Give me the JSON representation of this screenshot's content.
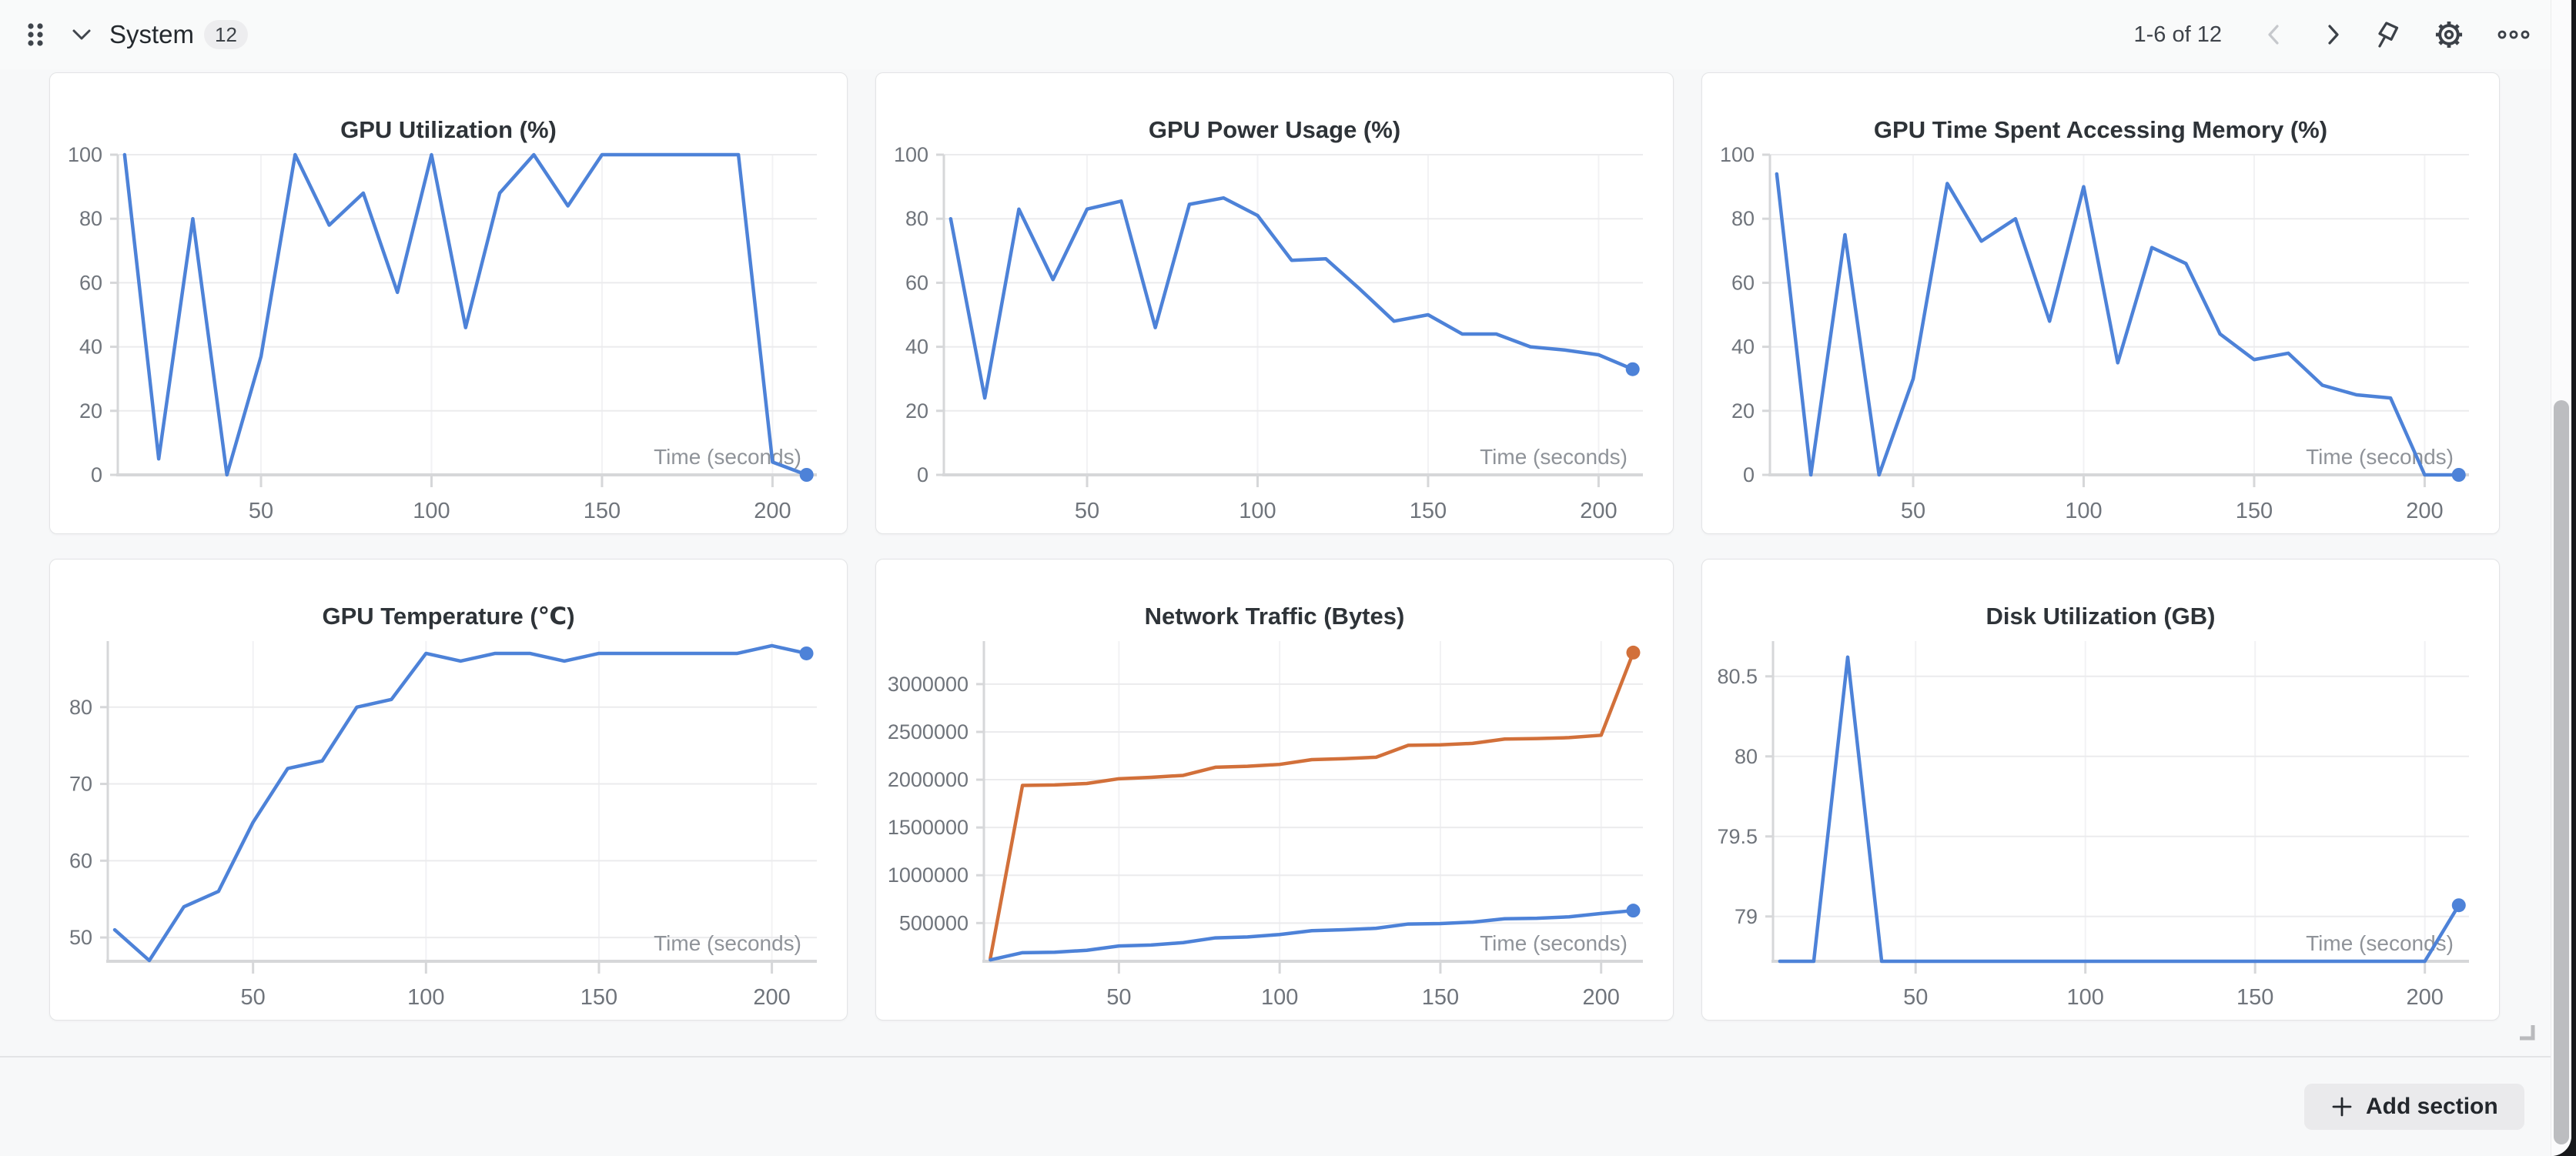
{
  "header": {
    "title": "System",
    "badge_count": "12",
    "pagination": "1-6 of 12",
    "icons": {
      "drag_handle": "six-dot-grip",
      "collapse": "chevron-down",
      "prev": "chevron-left",
      "next": "chevron-right",
      "pin": "push-pin",
      "settings": "gear",
      "more": "ellipsis"
    }
  },
  "footer": {
    "add_section_label": "Add section"
  },
  "colors": {
    "blue": "#4d82d8",
    "orange": "#d2703a",
    "axis": "#d6d7d9",
    "grid": "#ebebed",
    "grid_faint": "#f2f2f4",
    "tick_text": "#6f747b",
    "axis_label_text": "#8f9399"
  },
  "chart_data": [
    {
      "type": "line",
      "title": "GPU Utilization (%)",
      "xlabel": "Time (seconds)",
      "x": [
        10,
        20,
        30,
        40,
        50,
        60,
        70,
        80,
        90,
        100,
        110,
        120,
        130,
        140,
        150,
        160,
        170,
        180,
        190,
        200,
        210
      ],
      "series": [
        {
          "color": "#4d82d8",
          "values": [
            100,
            5,
            80,
            0,
            37,
            100,
            78,
            88,
            57,
            100,
            46,
            88,
            100,
            84,
            100,
            100,
            100,
            100,
            100,
            4,
            0
          ]
        }
      ],
      "x_ticks": [
        [
          50,
          "50"
        ],
        [
          100,
          "100"
        ],
        [
          150,
          "150"
        ],
        [
          200,
          "200"
        ]
      ],
      "y_ticks": [
        [
          0,
          "0"
        ],
        [
          20,
          "20"
        ],
        [
          40,
          "40"
        ],
        [
          60,
          "60"
        ],
        [
          80,
          "80"
        ],
        [
          100,
          "100"
        ]
      ],
      "x_domain": [
        8,
        213
      ],
      "y_domain": [
        0,
        100
      ],
      "plot_left": 88
    },
    {
      "type": "line",
      "title": "GPU Power Usage (%)",
      "xlabel": "Time (seconds)",
      "x": [
        10,
        20,
        30,
        40,
        50,
        60,
        70,
        80,
        90,
        100,
        110,
        120,
        130,
        140,
        150,
        160,
        170,
        180,
        190,
        200,
        210
      ],
      "series": [
        {
          "color": "#4d82d8",
          "values": [
            80,
            24,
            83,
            61,
            83,
            85.5,
            46,
            84.5,
            86.5,
            81,
            67,
            67.5,
            58,
            48,
            50,
            44,
            44,
            40,
            39,
            37.5,
            33
          ]
        }
      ],
      "x_ticks": [
        [
          50,
          "50"
        ],
        [
          100,
          "100"
        ],
        [
          150,
          "150"
        ],
        [
          200,
          "200"
        ]
      ],
      "y_ticks": [
        [
          0,
          "0"
        ],
        [
          20,
          "20"
        ],
        [
          40,
          "40"
        ],
        [
          60,
          "60"
        ],
        [
          80,
          "80"
        ],
        [
          100,
          "100"
        ]
      ],
      "x_domain": [
        8,
        213
      ],
      "y_domain": [
        0,
        100
      ],
      "plot_left": 88
    },
    {
      "type": "line",
      "title": "GPU Time Spent Accessing Memory (%)",
      "xlabel": "Time (seconds)",
      "x": [
        10,
        20,
        30,
        40,
        50,
        60,
        70,
        80,
        90,
        100,
        110,
        120,
        130,
        140,
        150,
        160,
        170,
        180,
        190,
        200,
        210
      ],
      "series": [
        {
          "color": "#4d82d8",
          "values": [
            94,
            0,
            75,
            0,
            30,
            91,
            73,
            80,
            48,
            90,
            35,
            71,
            66,
            44,
            36,
            38,
            28,
            25,
            24,
            0,
            0
          ]
        }
      ],
      "x_ticks": [
        [
          50,
          "50"
        ],
        [
          100,
          "100"
        ],
        [
          150,
          "150"
        ],
        [
          200,
          "200"
        ]
      ],
      "y_ticks": [
        [
          0,
          "0"
        ],
        [
          20,
          "20"
        ],
        [
          40,
          "40"
        ],
        [
          60,
          "60"
        ],
        [
          80,
          "80"
        ],
        [
          100,
          "100"
        ]
      ],
      "x_domain": [
        8,
        213
      ],
      "y_domain": [
        0,
        100
      ],
      "plot_left": 88
    },
    {
      "type": "line",
      "title": "GPU Temperature (℃)",
      "xlabel": "Time (seconds)",
      "x": [
        10,
        20,
        30,
        40,
        50,
        60,
        70,
        80,
        90,
        100,
        110,
        120,
        130,
        140,
        150,
        160,
        170,
        180,
        190,
        200,
        210
      ],
      "series": [
        {
          "color": "#4d82d8",
          "values": [
            51,
            47,
            54,
            56,
            65,
            72,
            73,
            80,
            81,
            87,
            86,
            87,
            87,
            86,
            87,
            87,
            87,
            87,
            87,
            88,
            87
          ]
        }
      ],
      "x_ticks": [
        [
          50,
          "50"
        ],
        [
          100,
          "100"
        ],
        [
          150,
          "150"
        ],
        [
          200,
          "200"
        ]
      ],
      "y_ticks": [
        [
          50,
          "50"
        ],
        [
          60,
          "60"
        ],
        [
          70,
          "70"
        ],
        [
          80,
          "80"
        ]
      ],
      "x_domain": [
        8,
        213
      ],
      "y_domain": [
        46.9,
        88.6
      ],
      "plot_left": 75
    },
    {
      "type": "line",
      "title": "Network Traffic (Bytes)",
      "xlabel": "Time (seconds)",
      "x": [
        10,
        20,
        30,
        40,
        50,
        60,
        70,
        80,
        90,
        100,
        110,
        120,
        130,
        140,
        150,
        160,
        170,
        180,
        190,
        200,
        210
      ],
      "series": [
        {
          "color": "#d2703a",
          "values": [
            130000,
            1940000,
            1945000,
            1960000,
            2010000,
            2025000,
            2045000,
            2130000,
            2140000,
            2160000,
            2210000,
            2220000,
            2235000,
            2360000,
            2365000,
            2380000,
            2425000,
            2430000,
            2440000,
            2465000,
            3330000
          ]
        },
        {
          "color": "#4d82d8",
          "values": [
            115000,
            190000,
            195000,
            215000,
            260000,
            270000,
            295000,
            345000,
            355000,
            380000,
            420000,
            430000,
            445000,
            490000,
            495000,
            510000,
            545000,
            550000,
            565000,
            600000,
            630000
          ]
        }
      ],
      "x_ticks": [
        [
          50,
          "50"
        ],
        [
          100,
          "100"
        ],
        [
          150,
          "150"
        ],
        [
          200,
          "200"
        ]
      ],
      "y_ticks": [
        [
          500000,
          "500000"
        ],
        [
          1000000,
          "1000000"
        ],
        [
          1500000,
          "1500000"
        ],
        [
          2000000,
          "2000000"
        ],
        [
          2500000,
          "2500000"
        ],
        [
          3000000,
          "3000000"
        ]
      ],
      "x_domain": [
        8,
        213
      ],
      "y_domain": [
        100000,
        3450000
      ],
      "plot_left": 140
    },
    {
      "type": "line",
      "title": "Disk Utilization (GB)",
      "xlabel": "Time (seconds)",
      "x": [
        10,
        20,
        30,
        40,
        50,
        60,
        70,
        80,
        90,
        100,
        110,
        120,
        130,
        140,
        150,
        160,
        170,
        180,
        190,
        200,
        210
      ],
      "series": [
        {
          "color": "#4d82d8",
          "values": [
            78.72,
            78.72,
            80.62,
            78.72,
            78.72,
            78.72,
            78.72,
            78.72,
            78.72,
            78.72,
            78.72,
            78.72,
            78.72,
            78.72,
            78.72,
            78.72,
            78.72,
            78.72,
            78.72,
            78.72,
            79.07
          ]
        }
      ],
      "x_ticks": [
        [
          50,
          "50"
        ],
        [
          100,
          "100"
        ],
        [
          150,
          "150"
        ],
        [
          200,
          "200"
        ]
      ],
      "y_ticks": [
        [
          79,
          "79"
        ],
        [
          79.5,
          "79.5"
        ],
        [
          80,
          "80"
        ],
        [
          80.5,
          "80.5"
        ]
      ],
      "x_domain": [
        8,
        213
      ],
      "y_domain": [
        78.72,
        80.72
      ],
      "plot_left": 92
    }
  ]
}
